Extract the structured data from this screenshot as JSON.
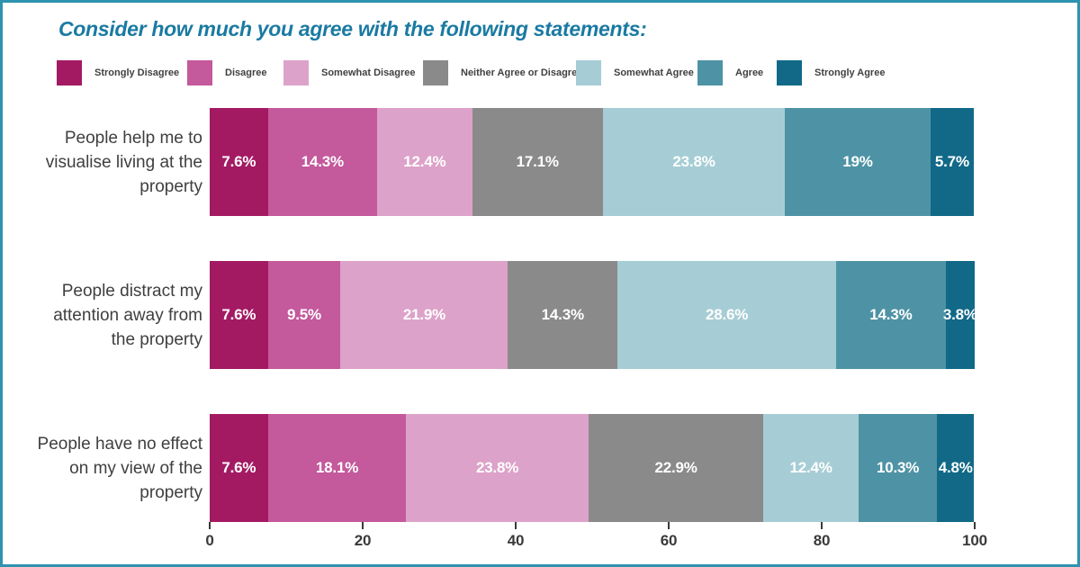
{
  "frame": {
    "border_color": "#2E93AE",
    "background_color": "#FFFFFF"
  },
  "title": {
    "text": "Consider how much you agree with the following statements:",
    "color": "#1A7AA2"
  },
  "legend": {
    "items": [
      {
        "label": "Strongly Disagree",
        "color": "#A31A63"
      },
      {
        "label": "Disagree",
        "color": "#C4599C"
      },
      {
        "label": "Somewhat Disagree",
        "color": "#DDA2C9"
      },
      {
        "label": "Neither Agree or Disagree",
        "color": "#8A8A8A"
      },
      {
        "label": "Somewhat Agree",
        "color": "#A6CDD5"
      },
      {
        "label": "Agree",
        "color": "#4E93A5"
      },
      {
        "label": "Strongly Agree",
        "color": "#116987"
      }
    ]
  },
  "chart_data": {
    "type": "bar",
    "orientation": "horizontal",
    "stacked": true,
    "title": "Consider how much you agree with the following statements:",
    "categories": [
      "People help me to visualise living at the property",
      "People distract my attention away from the property",
      "People have no effect on my view of the property"
    ],
    "series": [
      {
        "name": "Strongly Disagree",
        "color": "#A31A63",
        "values": [
          7.6,
          7.6,
          7.6
        ],
        "labels": [
          "7.6%",
          "7.6%",
          "7.6%"
        ]
      },
      {
        "name": "Disagree",
        "color": "#C4599C",
        "values": [
          14.3,
          9.5,
          18.1
        ],
        "labels": [
          "14.3%",
          "9.5%",
          "18.1%"
        ]
      },
      {
        "name": "Somewhat Disagree",
        "color": "#DDA2C9",
        "values": [
          12.4,
          21.9,
          23.8
        ],
        "labels": [
          "12.4%",
          "21.9%",
          "23.8%"
        ]
      },
      {
        "name": "Neither Agree or Disagree",
        "color": "#8A8A8A",
        "values": [
          17.1,
          14.3,
          22.9
        ],
        "labels": [
          "17.1%",
          "14.3%",
          "22.9%"
        ]
      },
      {
        "name": "Somewhat Agree",
        "color": "#A6CDD5",
        "values": [
          23.8,
          28.6,
          12.4
        ],
        "labels": [
          "23.8%",
          "28.6%",
          "12.4%"
        ]
      },
      {
        "name": "Agree",
        "color": "#4E93A5",
        "values": [
          19,
          14.3,
          10.3
        ],
        "labels": [
          "19%",
          "14.3%",
          "10.3%"
        ]
      },
      {
        "name": "Strongly Agree",
        "color": "#116987",
        "values": [
          5.7,
          3.8,
          4.8
        ],
        "labels": [
          "5.7%",
          "3.8%",
          "4.8%"
        ]
      }
    ],
    "xlim": [
      0,
      100
    ],
    "x_tick_values": [
      0,
      20,
      40,
      60,
      80,
      100
    ],
    "x_tick_labels": [
      "0",
      "20",
      "40",
      "60",
      "80",
      "100"
    ],
    "grid": false,
    "legend_position": "top",
    "value_label_color": "#FFFFFF",
    "axis_text_color": "#3A3A3A",
    "category_text_color": "#3F3F3F"
  }
}
